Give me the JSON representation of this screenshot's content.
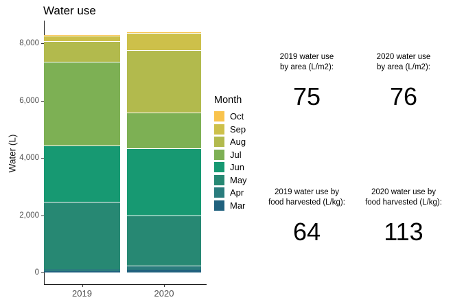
{
  "title": "Water use",
  "chart_data": {
    "type": "bar",
    "stacked": true,
    "title": "Water use",
    "xlabel": "",
    "ylabel": "Water (L)",
    "categories": [
      "2019",
      "2020"
    ],
    "ylim": [
      0,
      8400
    ],
    "yticks": [
      0,
      2000,
      4000,
      6000,
      8000
    ],
    "ytick_labels": [
      "0",
      "2,000",
      "4,000",
      "6,000",
      "8,000"
    ],
    "grid": false,
    "legend_title": "Month",
    "legend_position": "right",
    "legend_order": [
      "Oct",
      "Sep",
      "Aug",
      "Jul",
      "Jun",
      "May",
      "Apr",
      "Mar"
    ],
    "series": [
      {
        "name": "Mar",
        "color": "#20617E",
        "values": [
          50,
          100
        ]
      },
      {
        "name": "Apr",
        "color": "#2A7C7D",
        "values": [
          70,
          140
        ]
      },
      {
        "name": "May",
        "color": "#278873",
        "values": [
          2340,
          1740
        ]
      },
      {
        "name": "Jun",
        "color": "#179972",
        "values": [
          1970,
          2350
        ]
      },
      {
        "name": "Jul",
        "color": "#7DB054",
        "values": [
          2930,
          1250
        ]
      },
      {
        "name": "Aug",
        "color": "#B2BA4D",
        "values": [
          720,
          2180
        ]
      },
      {
        "name": "Sep",
        "color": "#CDC04A",
        "values": [
          190,
          600
        ]
      },
      {
        "name": "Oct",
        "color": "#F9C34C",
        "values": [
          20,
          30
        ]
      }
    ],
    "totals": [
      8290,
      8390
    ]
  },
  "annotations": {
    "area_2019": {
      "label_line1": "2019 water use",
      "label_line2": "by area (L/m2):",
      "value": "75"
    },
    "area_2020": {
      "label_line1": "2020 water use",
      "label_line2": "by area (L/m2):",
      "value": "76"
    },
    "food_2019": {
      "label_line1": "2019 water use by",
      "label_line2": "food harvested (L/kg):",
      "value": "64"
    },
    "food_2020": {
      "label_line1": "2020 water use by",
      "label_line2": "food harvested (L/kg):",
      "value": "113"
    }
  }
}
